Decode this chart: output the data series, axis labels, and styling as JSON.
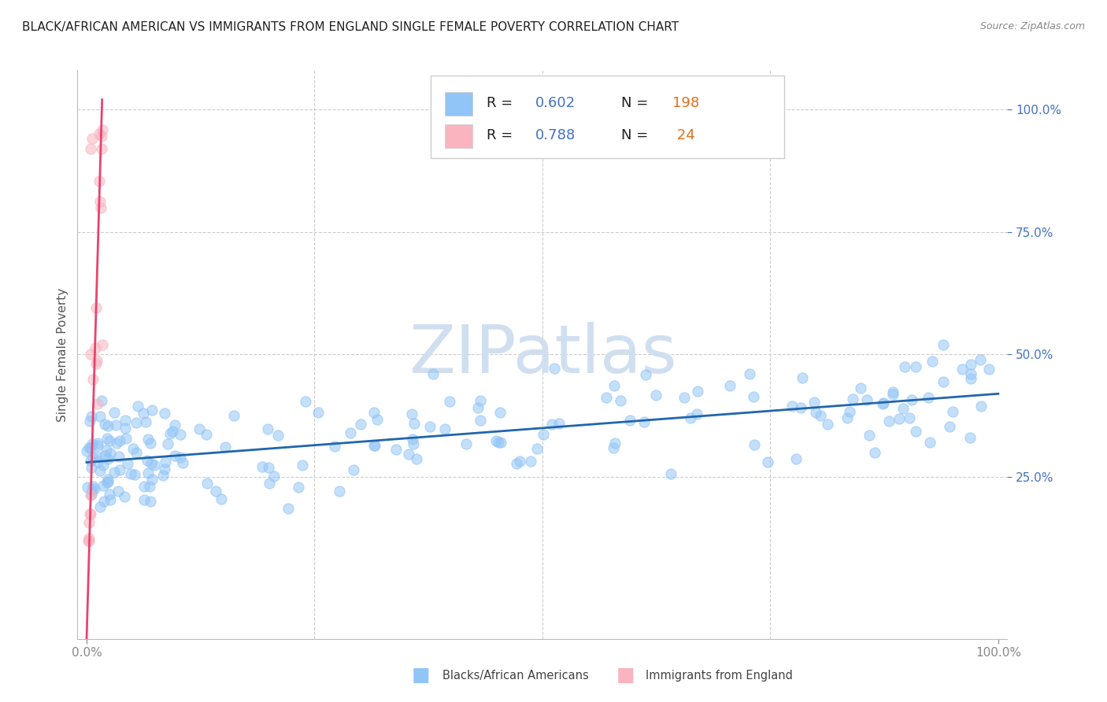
{
  "title": "BLACK/AFRICAN AMERICAN VS IMMIGRANTS FROM ENGLAND SINGLE FEMALE POVERTY CORRELATION CHART",
  "source": "Source: ZipAtlas.com",
  "ylabel": "Single Female Poverty",
  "blue_color": "#92c5f7",
  "blue_edge_color": "#92c5f7",
  "blue_line_color": "#2166ac",
  "pink_color": "#f9b4c0",
  "pink_edge_color": "#f9b4c0",
  "pink_line_color": "#e8436e",
  "legend_blue_R": "0.602",
  "legend_blue_N": "198",
  "legend_pink_R": "0.788",
  "legend_pink_N": "24",
  "watermark_text": "ZIPatlas",
  "watermark_color": "#d0dff0",
  "grid_color": "#cccccc",
  "background_color": "#ffffff",
  "blue_trend_x0": 0.0,
  "blue_trend_y0": 0.28,
  "blue_trend_x1": 1.0,
  "blue_trend_y1": 0.42,
  "pink_trend_x0": 0.0,
  "pink_trend_y0": -0.08,
  "pink_trend_x1": 0.017,
  "pink_trend_y1": 1.02,
  "xlim_min": -0.01,
  "xlim_max": 1.01,
  "ylim_min": -0.08,
  "ylim_max": 1.08
}
